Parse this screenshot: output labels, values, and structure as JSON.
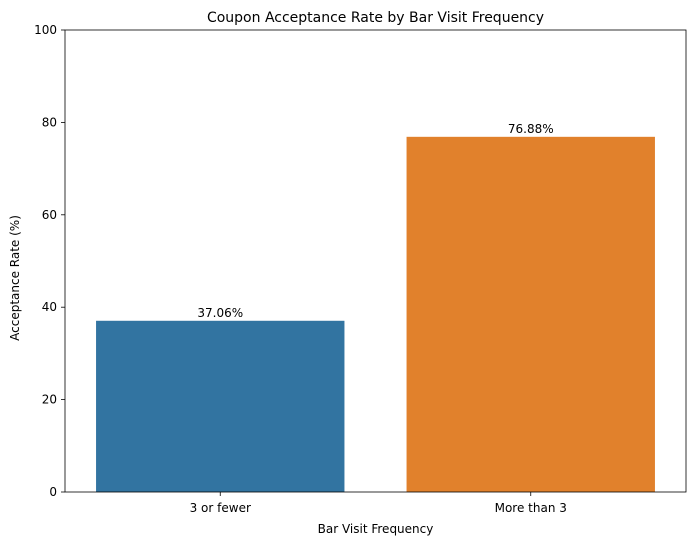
{
  "chart_data": {
    "type": "bar",
    "title": "Coupon Acceptance Rate by Bar Visit Frequency",
    "xlabel": "Bar Visit Frequency",
    "ylabel": "Acceptance Rate (%)",
    "categories": [
      "3 or fewer",
      "More than 3"
    ],
    "values": [
      37.06,
      76.88
    ],
    "data_labels": [
      "37.06%",
      "76.88%"
    ],
    "colors": [
      "#3274a1",
      "#e1812c"
    ],
    "ylim": [
      0,
      100
    ],
    "yticks": [
      0,
      20,
      40,
      60,
      80,
      100
    ],
    "ytick_labels": [
      "0",
      "20",
      "40",
      "60",
      "80",
      "100"
    ],
    "grid": false,
    "legend": "none"
  }
}
